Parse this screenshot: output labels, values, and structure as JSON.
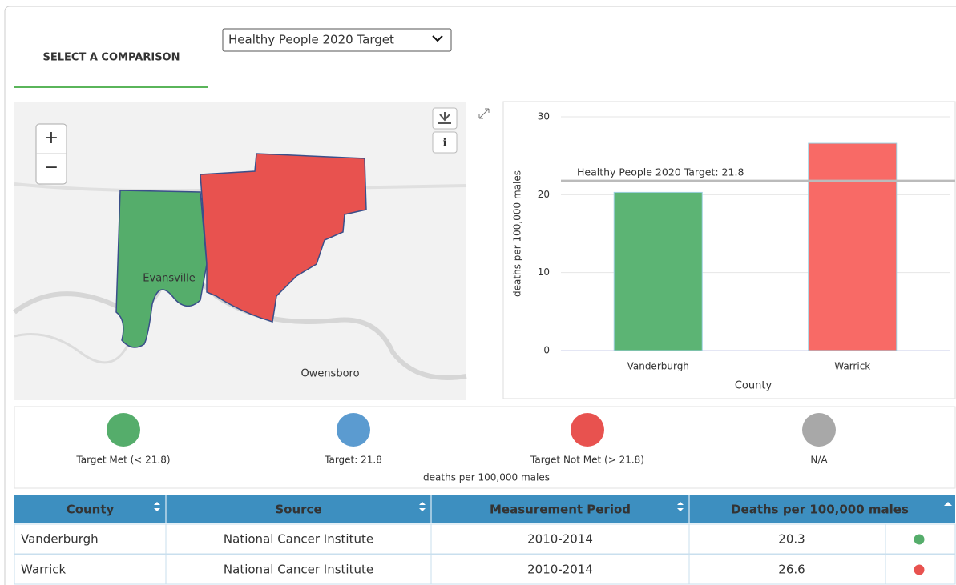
{
  "tab": "SELECT A COMPARISON",
  "dropdown": "Healthy People 2020 Target",
  "map": {
    "labels": [
      "Evansville",
      "Owensboro"
    ],
    "zoom_in": "+",
    "zoom_out": "−",
    "info": "i"
  },
  "chart_data": {
    "type": "bar",
    "categories": [
      "Vanderburgh",
      "Warrick"
    ],
    "values": [
      20.3,
      26.6
    ],
    "colors": [
      "#5cb474",
      "#f86a66"
    ],
    "ylim": [
      0,
      30
    ],
    "yticks": [
      0,
      10,
      20,
      30
    ],
    "grid": true,
    "y_label": "deaths per 100,000 males",
    "x_label": "County",
    "target": {
      "value": 21.8,
      "label": "Healthy People 2020 Target: 21.8"
    }
  },
  "legend": {
    "items": [
      {
        "label": "Target Met (< 21.8)",
        "color": "#55ad6b"
      },
      {
        "label": "Target: 21.8",
        "color": "#5b9bd0"
      },
      {
        "label": "Target Not Met (> 21.8)",
        "color": "#e8524f"
      },
      {
        "label": "N/A",
        "color": "#a8a8a8"
      }
    ],
    "note": "deaths per 100,000 males"
  },
  "table": {
    "headers": [
      "County",
      "Source",
      "Measurement Period",
      "Deaths per 100,000 males"
    ],
    "rows": [
      [
        "Vanderburgh",
        "National Cancer Institute",
        "2010-2014",
        "20.3"
      ],
      [
        "Warrick",
        "National Cancer Institute",
        "2010-2014",
        "26.6"
      ]
    ],
    "row_colors": [
      "#55ad6b",
      "#e8524f"
    ]
  }
}
